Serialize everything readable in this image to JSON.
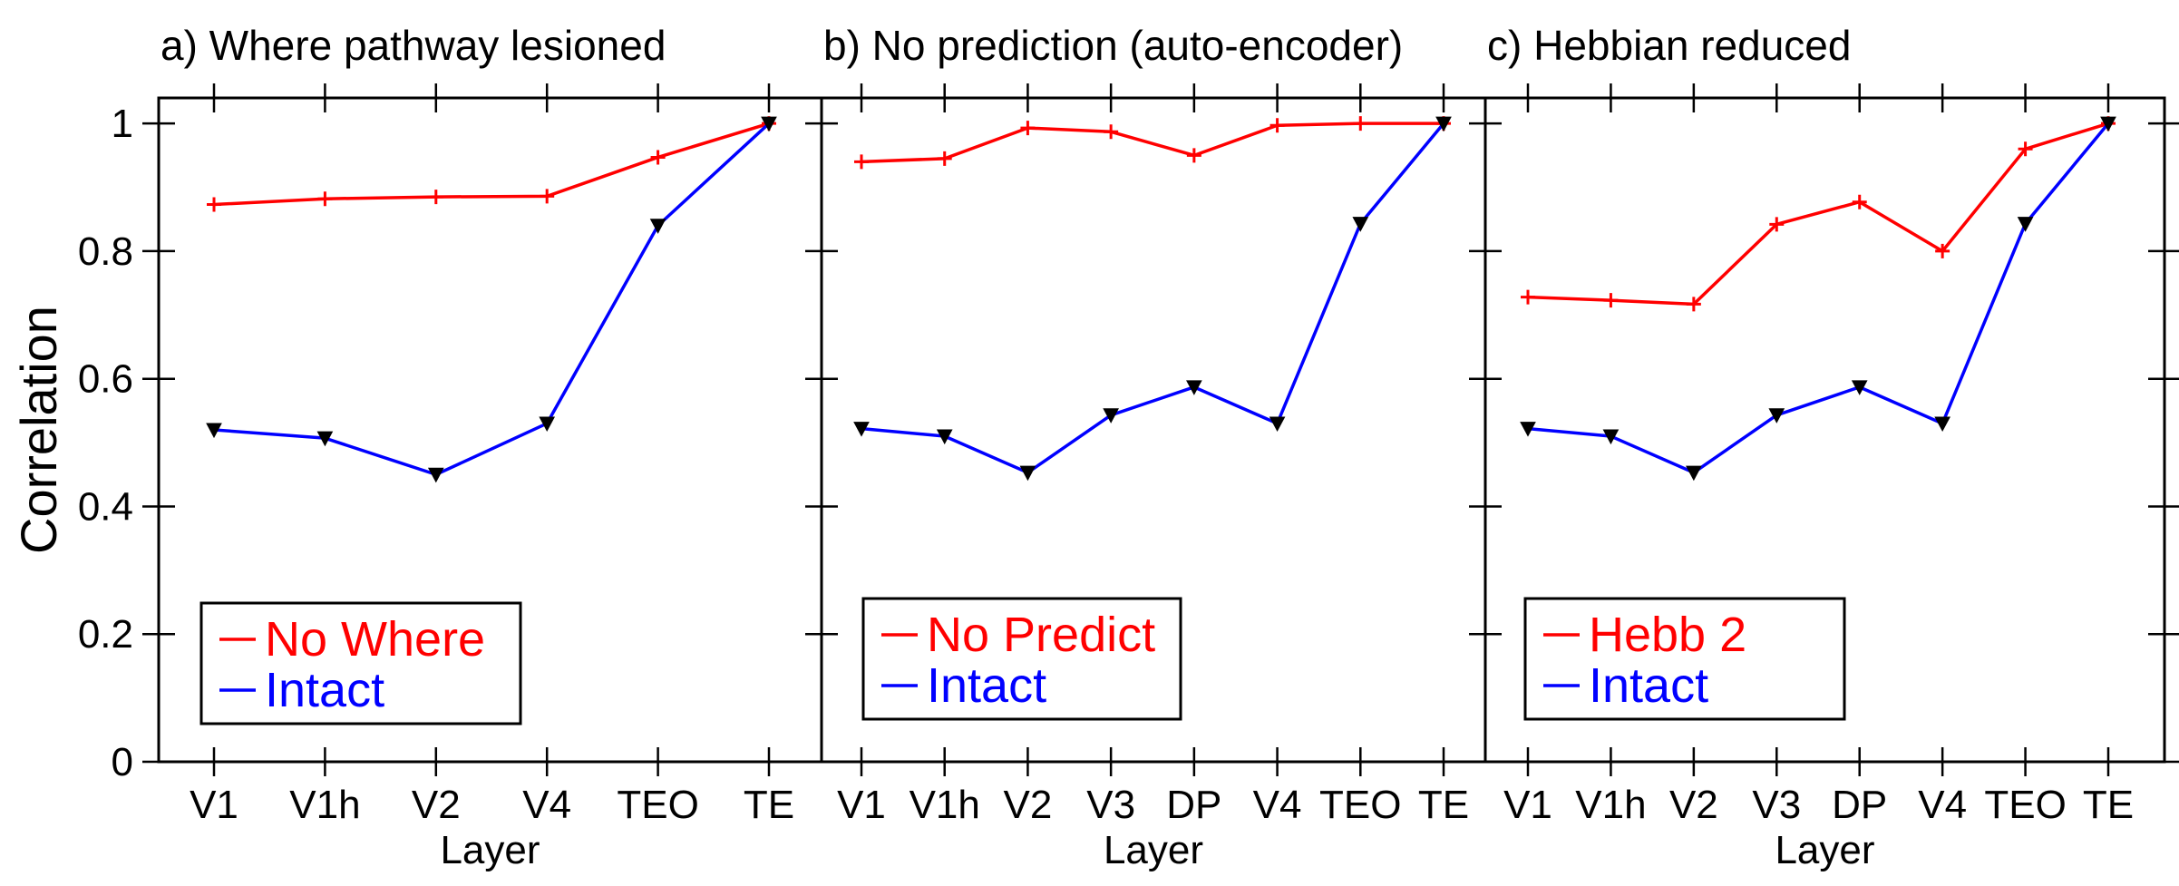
{
  "chart_data": [
    {
      "type": "line",
      "title": "a) Where pathway lesioned",
      "xlabel": "Layer",
      "ylabel": "Correlation",
      "ylim": [
        0,
        1.04
      ],
      "yticks": [
        "0",
        "0.2",
        "0.4",
        "0.6",
        "0.8",
        "1"
      ],
      "categories": [
        "V1",
        "V1h",
        "V2",
        "V4",
        "TEO",
        "TE"
      ],
      "legend_position": "bottom-left",
      "series": [
        {
          "name": "No Where",
          "color": "#ff0000",
          "marker": "plus",
          "values": [
            0.873,
            0.882,
            0.885,
            0.886,
            0.947,
            1.0
          ]
        },
        {
          "name": "Intact",
          "color": "#0000ff",
          "marker": "triangle-down",
          "values": [
            0.52,
            0.507,
            0.45,
            0.53,
            0.84,
            1.0
          ]
        }
      ]
    },
    {
      "type": "line",
      "title": "b) No prediction (auto-encoder)",
      "xlabel": "Layer",
      "ylabel": "",
      "ylim": [
        0,
        1.04
      ],
      "categories": [
        "V1",
        "V1h",
        "V2",
        "V3",
        "DP",
        "V4",
        "TEO",
        "TE"
      ],
      "legend_position": "bottom-left",
      "series": [
        {
          "name": "No Predict",
          "color": "#ff0000",
          "marker": "plus",
          "values": [
            0.94,
            0.945,
            0.993,
            0.987,
            0.95,
            0.997,
            1.0,
            1.0
          ]
        },
        {
          "name": "Intact",
          "color": "#0000ff",
          "marker": "triangle-down",
          "values": [
            0.522,
            0.51,
            0.453,
            0.543,
            0.587,
            0.53,
            0.843,
            1.0
          ]
        }
      ]
    },
    {
      "type": "line",
      "title": "c) Hebbian reduced",
      "xlabel": "Layer",
      "ylabel": "",
      "ylim": [
        0,
        1.04
      ],
      "categories": [
        "V1",
        "V1h",
        "V2",
        "V3",
        "DP",
        "V4",
        "TEO",
        "TE"
      ],
      "legend_position": "bottom-left",
      "series": [
        {
          "name": "Hebb 2",
          "color": "#ff0000",
          "marker": "plus",
          "values": [
            0.728,
            0.723,
            0.717,
            0.842,
            0.877,
            0.8,
            0.96,
            1.0
          ]
        },
        {
          "name": "Intact",
          "color": "#0000ff",
          "marker": "triangle-down",
          "values": [
            0.522,
            0.51,
            0.453,
            0.543,
            0.587,
            0.53,
            0.843,
            1.0
          ]
        }
      ]
    }
  ]
}
